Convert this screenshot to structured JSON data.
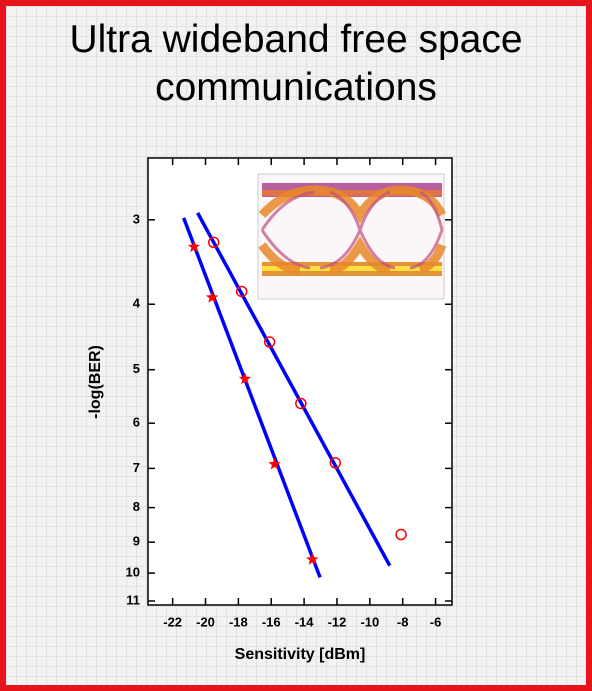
{
  "title": "Ultra wideband free space communications",
  "chart_data": {
    "type": "scatter",
    "xlabel": "Sensitivity [dBm]",
    "ylabel": "-log(BER)",
    "xlim": [
      -23.5,
      -5
    ],
    "xticks": [
      -22,
      -20,
      -18,
      -16,
      -14,
      -12,
      -10,
      -8,
      -6
    ],
    "ylim": [
      2.43,
      11.15
    ],
    "yticks": [
      3,
      4,
      5,
      6,
      7,
      8,
      9,
      10,
      11
    ],
    "y_scale": "log",
    "y_inverted": true,
    "series": [
      {
        "marker": "star",
        "color": "#ff0000",
        "x": [
          -20.7,
          -19.6,
          -17.6,
          -15.8,
          -13.5
        ],
        "values": [
          3.29,
          3.91,
          5.16,
          6.9,
          9.55
        ]
      },
      {
        "marker": "circle",
        "color": "#ff0000",
        "x": [
          -19.5,
          -17.8,
          -16.1,
          -14.2,
          -12.1,
          -8.1
        ],
        "values": [
          3.24,
          3.83,
          4.55,
          5.61,
          6.87,
          8.77
        ]
      },
      {
        "marker": "line",
        "color": "#0000ff",
        "x": [
          -21.33,
          -13.03
        ],
        "values": [
          2.98,
          10.15
        ]
      },
      {
        "marker": "line",
        "color": "#0000ff",
        "x": [
          -20.48,
          -8.79
        ],
        "values": [
          2.93,
          9.75
        ]
      }
    ]
  }
}
